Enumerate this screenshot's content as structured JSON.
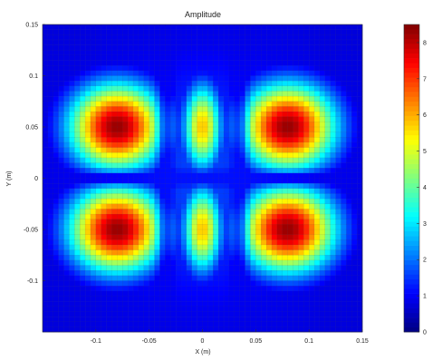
{
  "chart_data": {
    "type": "heatmap",
    "title": "Amplitude",
    "xlabel": "X (m)",
    "ylabel": "Y (m)",
    "xlim": [
      -0.15,
      0.15
    ],
    "ylim": [
      -0.15,
      0.15
    ],
    "x_ticks": [
      -0.1,
      -0.05,
      0,
      0.05,
      0.1,
      0.15
    ],
    "x_tick_labels": [
      "-0.1",
      "-0.05",
      "0",
      "0.05",
      "0.1",
      "0.15"
    ],
    "y_ticks": [
      0.15,
      0.1,
      0.05,
      0,
      -0.05,
      -0.1
    ],
    "y_tick_labels": [
      "0.15",
      "0.1",
      "0.05",
      "0",
      "-0.05",
      "-0.1"
    ],
    "colorbar": {
      "colormap": "jet",
      "range": [
        0,
        8.5
      ],
      "ticks": [
        0,
        1,
        2,
        3,
        4,
        5,
        6,
        7,
        8
      ],
      "tick_labels": [
        "0",
        "1",
        "2",
        "3",
        "4",
        "5",
        "6",
        "7",
        "8"
      ]
    },
    "grid_resolution": 60,
    "peaks": [
      {
        "x": -0.08,
        "y": 0.05,
        "value": 8.3
      },
      {
        "x": 0.08,
        "y": 0.05,
        "value": 8.3
      },
      {
        "x": -0.08,
        "y": -0.05,
        "value": 8.3
      },
      {
        "x": 0.08,
        "y": -0.05,
        "value": 8.3
      },
      {
        "x": 0.0,
        "y": 0.05,
        "value": 5.8
      },
      {
        "x": 0.0,
        "y": -0.05,
        "value": 5.8
      }
    ],
    "nodal_lines": {
      "x": [
        -0.035,
        0.035
      ],
      "y": [
        0
      ]
    },
    "background_value": 1.6
  }
}
